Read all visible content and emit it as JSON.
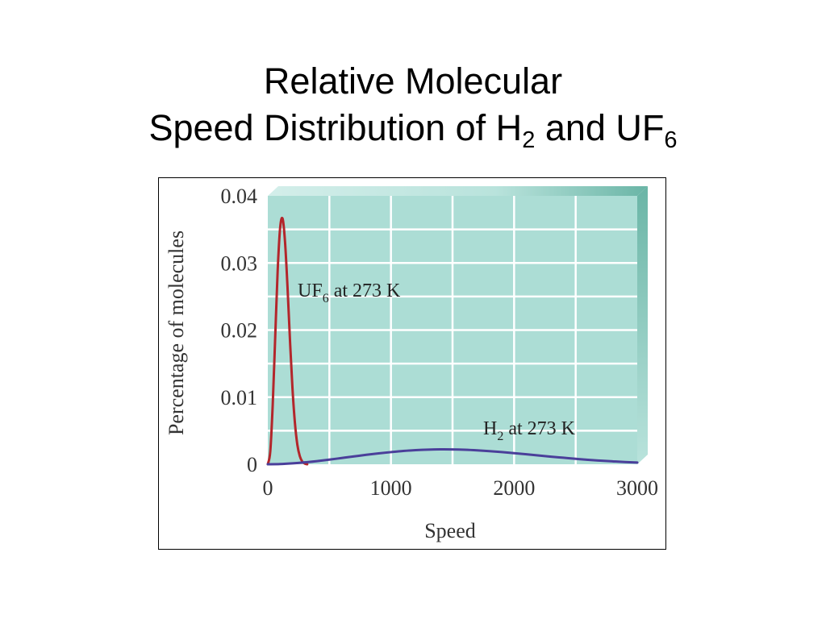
{
  "title": {
    "line1": "Relative Molecular",
    "line2_text": "Speed Distribution of H",
    "line2_sub1": "2",
    "line2_mid": " and UF",
    "line2_sub2": "6"
  },
  "colors": {
    "plot_bg": "#acddd5",
    "plot_shadow": "#6ab5a6",
    "grid": "#ffffff",
    "uf6": "#b3262b",
    "h2": "#4a3f9a"
  },
  "chart_data": {
    "type": "line",
    "title": "",
    "xlabel": "Speed",
    "ylabel": "Percentage of molecules",
    "xlim": [
      0,
      3000
    ],
    "ylim": [
      0,
      0.04
    ],
    "xticks": [
      "0",
      "1000",
      "2000",
      "3000"
    ],
    "yticks": [
      "0",
      "0.01",
      "0.02",
      "0.03",
      "0.04"
    ],
    "grid": true,
    "series": [
      {
        "name": "UF6 at 273 K",
        "label_main": "UF",
        "label_sub": "6",
        "label_tail": " at 273 K",
        "color": "#b3262b",
        "x": [
          0,
          20,
          40,
          60,
          80,
          100,
          120,
          140,
          160,
          180,
          200,
          220,
          240,
          260,
          280,
          300,
          320
        ],
        "y": [
          0,
          0.0019,
          0.0089,
          0.0189,
          0.0288,
          0.0352,
          0.0366,
          0.0331,
          0.0264,
          0.0185,
          0.0114,
          0.0062,
          0.0029,
          0.0012,
          0.0004,
          0.0001,
          0
        ]
      },
      {
        "name": "H2 at 273 K",
        "label_main": "H",
        "label_sub": "2",
        "label_tail": " at 273 K",
        "color": "#4a3f9a",
        "x": [
          0,
          100,
          200,
          300,
          400,
          500,
          600,
          700,
          800,
          900,
          1000,
          1100,
          1200,
          1300,
          1400,
          1500,
          1600,
          1700,
          1800,
          1900,
          2000,
          2100,
          2200,
          2300,
          2400,
          2500,
          2600,
          2700,
          2800,
          2900,
          3000
        ],
        "y": [
          0,
          3e-05,
          0.00013,
          0.00028,
          0.00047,
          0.00069,
          0.00093,
          0.00117,
          0.00141,
          0.00162,
          0.00181,
          0.00198,
          0.0021,
          0.00218,
          0.00222,
          0.00221,
          0.00216,
          0.00207,
          0.00195,
          0.00181,
          0.00165,
          0.00148,
          0.0013,
          0.00113,
          0.00097,
          0.00081,
          0.00066,
          0.00054,
          0.00043,
          0.00033,
          0.00025
        ]
      }
    ]
  }
}
